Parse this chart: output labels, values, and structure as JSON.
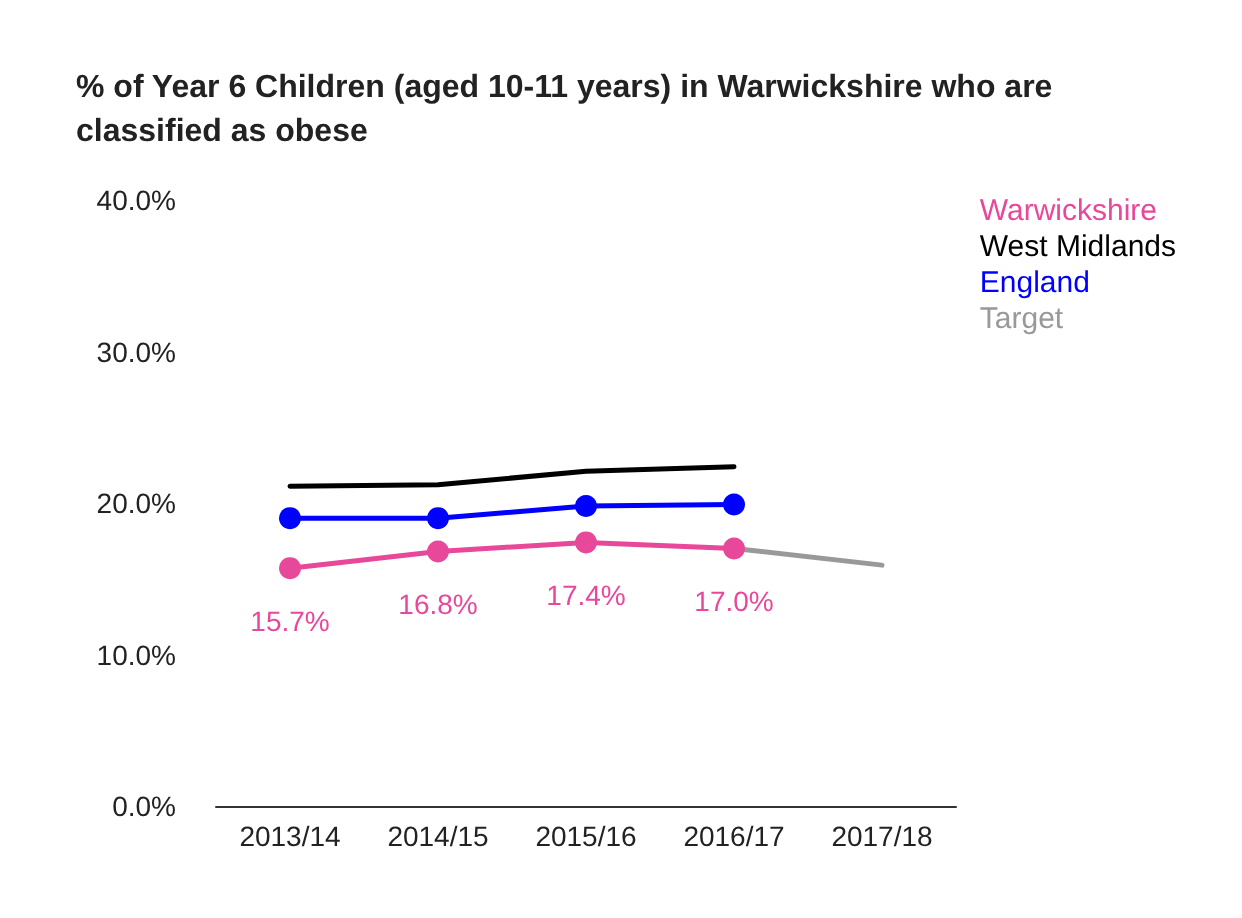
{
  "chart_data": {
    "type": "line",
    "title": "% of Year 6 Children (aged 10-11 years) in Warwickshire who are classified as obese",
    "categories": [
      "2013/14",
      "2014/15",
      "2015/16",
      "2016/17",
      "2017/18"
    ],
    "series": [
      {
        "name": "Warwickshire",
        "color": "#e8489a",
        "marker": "circle",
        "values": [
          15.7,
          16.8,
          17.4,
          17.0,
          null
        ],
        "value_labels": [
          "15.7%",
          "16.8%",
          "17.4%",
          "17.0%",
          null
        ]
      },
      {
        "name": "West Midlands",
        "color": "#000000",
        "marker": "none",
        "values": [
          21.1,
          21.2,
          22.1,
          22.4,
          null
        ]
      },
      {
        "name": "England",
        "color": "#0000ff",
        "marker": "circle",
        "values": [
          19.0,
          19.0,
          19.8,
          19.9,
          null
        ]
      },
      {
        "name": "Target",
        "color": "#999999",
        "marker": "none",
        "values": [
          null,
          null,
          null,
          17.0,
          15.9
        ]
      }
    ],
    "ylim": [
      0,
      40
    ],
    "yticks": [
      {
        "value": 0,
        "label": "0.0%"
      },
      {
        "value": 10,
        "label": "10.0%"
      },
      {
        "value": 20,
        "label": "20.0%"
      },
      {
        "value": 30,
        "label": "30.0%"
      },
      {
        "value": 40,
        "label": "40.0%"
      }
    ],
    "grid": false,
    "legend": "right"
  }
}
